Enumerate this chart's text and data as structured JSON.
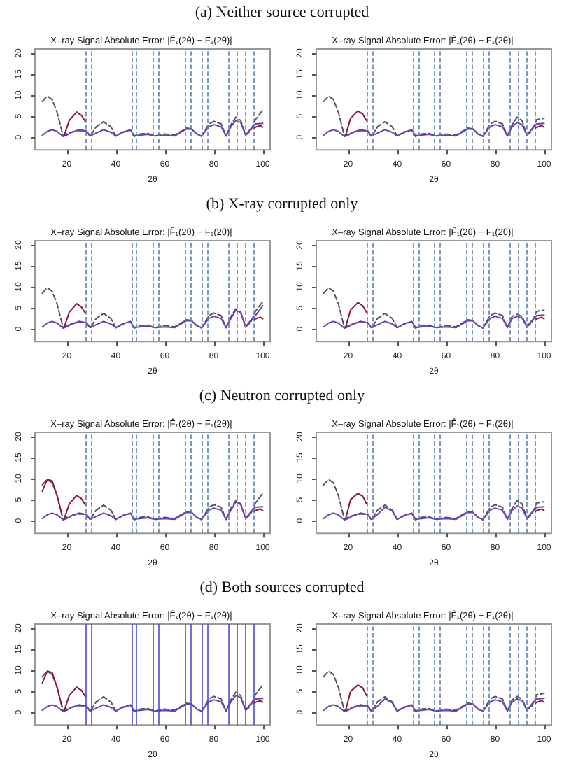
{
  "chart_data": [
    {
      "type": "line",
      "subtitle": "(a) Neither source corrupted",
      "title": "X–ray Signal Absolute Error: |F̂₁(2θ) − F₁(2θ)|",
      "xlabel": "2θ",
      "xlim": [
        7,
        103
      ],
      "xticks": [
        20,
        40,
        60,
        80,
        100
      ],
      "ylim": [
        -3,
        21
      ],
      "yticks": [
        0,
        5,
        10,
        15,
        20
      ],
      "x": [
        10,
        12,
        14,
        16,
        18.5,
        20,
        22,
        25,
        28,
        29.5,
        32,
        35,
        38,
        40,
        43,
        46,
        47.5,
        50,
        53,
        56,
        60,
        64,
        66,
        69,
        71,
        73,
        75,
        78,
        80,
        83,
        85,
        87,
        89,
        91,
        93,
        95,
        97,
        100
      ],
      "series": [
        {
          "color": "#555555",
          "line_style": "dashed",
          "values": [
            8.5,
            9.8,
            9,
            6,
            0.3,
            0.8,
            1.2,
            1.6,
            1.5,
            0.2,
            2.5,
            3.7,
            2.5,
            0.3,
            1.2,
            1.8,
            0.2,
            0.8,
            0.9,
            0.3,
            0.8,
            0.5,
            1.2,
            2.2,
            2,
            0.8,
            0.2,
            3.2,
            3.8,
            3.2,
            0.3,
            3,
            4.8,
            4,
            0.5,
            1.5,
            4.2,
            6.5
          ]
        },
        {
          "color": "#6a3fb5",
          "values": [
            0.5,
            1.4,
            1.8,
            1.4,
            0.2,
            0.5,
            1.2,
            1.8,
            1.5,
            0.3,
            1,
            1.8,
            1.2,
            0.3,
            1.3,
            1.7,
            0.4,
            0.5,
            0.7,
            0.3,
            0.5,
            0.3,
            1,
            2,
            1.9,
            0.8,
            0.3,
            2.5,
            3,
            2.5,
            0.3,
            2.5,
            4,
            3.5,
            0.5,
            2,
            3.2,
            3.3
          ]
        },
        {
          "color": "#8b1a3a",
          "x": [
            19,
            21,
            24,
            26,
            27.5
          ],
          "values": [
            0.5,
            4,
            6,
            5.2,
            3.8
          ]
        },
        {
          "color": "#8b1a3a",
          "x": [
            96.5,
            97,
            99,
            100
          ],
          "values": [
            2.2,
            2.4,
            2.8,
            2.4
          ]
        }
      ],
      "ref_lines": [
        {
          "axis": "x",
          "value": 27.5,
          "line_style": "dashed"
        },
        {
          "axis": "x",
          "value": 30,
          "line_style": "dashed"
        },
        {
          "axis": "x",
          "value": 46.5,
          "line_style": "dashed"
        },
        {
          "axis": "x",
          "value": 48.5,
          "line_style": "dashed"
        },
        {
          "axis": "x",
          "value": 55,
          "line_style": "dashed"
        },
        {
          "axis": "x",
          "value": 57.5,
          "line_style": "dashed"
        },
        {
          "axis": "x",
          "value": 68,
          "line_style": "dashed"
        },
        {
          "axis": "x",
          "value": 70.5,
          "line_style": "dashed"
        },
        {
          "axis": "x",
          "value": 75,
          "line_style": "dashed"
        },
        {
          "axis": "x",
          "value": 77.5,
          "line_style": "dashed"
        },
        {
          "axis": "x",
          "value": 86,
          "line_style": "dashed"
        },
        {
          "axis": "x",
          "value": 89.5,
          "line_style": "dashed"
        },
        {
          "axis": "x",
          "value": 93,
          "line_style": "dashed"
        },
        {
          "axis": "x",
          "value": 96,
          "line_style": "dashed"
        }
      ]
    },
    {
      "type": "line",
      "title": "X–ray Signal Absolute Error: |F̂₁(2θ) − F₁(2θ)|",
      "xlabel": "2θ",
      "xlim": [
        7,
        103
      ],
      "xticks": [
        20,
        40,
        60,
        80,
        100
      ],
      "ylim": [
        -3,
        21
      ],
      "yticks": [
        0,
        5,
        10,
        15,
        20
      ],
      "x": [
        10,
        12,
        14,
        16,
        18.5,
        20,
        22,
        25,
        28,
        29.5,
        32,
        35,
        38,
        40,
        43,
        46,
        47.5,
        50,
        53,
        56,
        60,
        64,
        66,
        69,
        71,
        73,
        75,
        78,
        80,
        83,
        85,
        87,
        89,
        91,
        93,
        95,
        97,
        100
      ],
      "series": [
        {
          "color": "#555555",
          "line_style": "dashed",
          "values": [
            8.5,
            9.8,
            9,
            6,
            0.3,
            0.8,
            1.2,
            1.6,
            1.5,
            0.2,
            2.5,
            3.7,
            2.5,
            0.3,
            1.2,
            1.8,
            0.2,
            0.8,
            0.9,
            0.3,
            0.8,
            0.5,
            1.2,
            2.2,
            2,
            0.8,
            0.2,
            3.2,
            3.8,
            3.2,
            0.3,
            3,
            4.8,
            4,
            0.5,
            1.5,
            4.2,
            4.5
          ]
        },
        {
          "color": "#6a3fb5",
          "values": [
            0.5,
            1.4,
            1.8,
            1.4,
            0.2,
            0.5,
            1.2,
            1.8,
            1.5,
            0.3,
            1,
            1.8,
            1.2,
            0.3,
            1.3,
            1.7,
            0.4,
            0.5,
            0.7,
            0.3,
            0.5,
            0.3,
            1,
            2,
            1.9,
            0.8,
            0.3,
            2.5,
            3,
            2.5,
            0.3,
            2.5,
            3.5,
            3,
            0.5,
            2,
            3.2,
            3.3
          ]
        },
        {
          "color": "#8b1a3a",
          "x": [
            19,
            21,
            24,
            26,
            27.5
          ],
          "values": [
            0.5,
            4.5,
            6.3,
            5.5,
            4
          ]
        },
        {
          "color": "#8b1a3a",
          "x": [
            96.5,
            97,
            99,
            100
          ],
          "values": [
            2.2,
            2.4,
            2.8,
            2.4
          ]
        }
      ],
      "ref_lines": [
        {
          "axis": "x",
          "value": 27.5,
          "line_style": "dashed"
        },
        {
          "axis": "x",
          "value": 30,
          "line_style": "dashed"
        },
        {
          "axis": "x",
          "value": 46.5,
          "line_style": "dashed"
        },
        {
          "axis": "x",
          "value": 49,
          "line_style": "dashed"
        },
        {
          "axis": "x",
          "value": 55,
          "line_style": "dashed"
        },
        {
          "axis": "x",
          "value": 57.5,
          "line_style": "dashed"
        },
        {
          "axis": "x",
          "value": 68,
          "line_style": "dashed"
        },
        {
          "axis": "x",
          "value": 70.5,
          "line_style": "dashed"
        },
        {
          "axis": "x",
          "value": 75,
          "line_style": "dashed"
        },
        {
          "axis": "x",
          "value": 77.5,
          "line_style": "dashed"
        },
        {
          "axis": "x",
          "value": 86,
          "line_style": "dashed"
        },
        {
          "axis": "x",
          "value": 89.5,
          "line_style": "dashed"
        },
        {
          "axis": "x",
          "value": 93,
          "line_style": "dashed"
        },
        {
          "axis": "x",
          "value": 96,
          "line_style": "dashed"
        }
      ]
    },
    {
      "type": "line",
      "subtitle": "(b) X-ray corrupted only",
      "title": "X–ray Signal Absolute Error: |F̂₁(2θ) − F₁(2θ)|",
      "xlabel": "2θ",
      "xlim": [
        7,
        103
      ],
      "xticks": [
        20,
        40,
        60,
        80,
        100
      ],
      "ylim": [
        -3,
        21
      ],
      "yticks": [
        0,
        5,
        10,
        15,
        20
      ],
      "x": [
        10,
        12,
        14,
        16,
        18.5,
        20,
        22,
        25,
        28,
        29.5,
        32,
        35,
        38,
        40,
        43,
        46,
        47.5,
        50,
        53,
        56,
        60,
        64,
        66,
        69,
        71,
        73,
        75,
        78,
        80,
        83,
        85,
        87,
        89,
        91,
        93,
        95,
        97,
        100
      ],
      "series": [
        {
          "color": "#555555",
          "line_style": "dashed",
          "values": [
            8.5,
            9.8,
            9,
            6,
            0.3,
            0.8,
            1.2,
            1.6,
            1.5,
            0.2,
            2.5,
            3.7,
            2.5,
            0.3,
            1.2,
            1.8,
            0.2,
            0.8,
            0.9,
            0.3,
            0.8,
            0.5,
            1.2,
            2.2,
            2,
            0.8,
            0.2,
            3.2,
            3.8,
            3.2,
            0.3,
            3,
            4.8,
            4,
            0.5,
            1.5,
            4.2,
            6.5
          ]
        },
        {
          "color": "#6a3fb5",
          "values": [
            0.5,
            1.4,
            1.8,
            1.4,
            0.2,
            0.5,
            1.2,
            1.8,
            1.5,
            0.3,
            1,
            1.8,
            1.2,
            0.3,
            1.3,
            1.7,
            0.4,
            0.5,
            0.7,
            0.3,
            0.5,
            0.3,
            1,
            2,
            1.9,
            0.8,
            0.3,
            2.5,
            3,
            2.5,
            0.3,
            2.5,
            4.5,
            3.8,
            0.5,
            2,
            3.2,
            5.5
          ]
        },
        {
          "color": "#8b1a3a",
          "x": [
            19,
            21,
            24,
            26,
            27.5
          ],
          "values": [
            0.5,
            4,
            6,
            5.2,
            3.8
          ]
        },
        {
          "color": "#8b1a3a",
          "x": [
            96.5,
            97,
            99,
            100
          ],
          "values": [
            2.2,
            2.4,
            2.8,
            2.4
          ]
        }
      ],
      "ref_lines": [
        {
          "axis": "x",
          "value": 27.5,
          "line_style": "dashed"
        },
        {
          "axis": "x",
          "value": 30,
          "line_style": "dashed"
        },
        {
          "axis": "x",
          "value": 46.5,
          "line_style": "dashed"
        },
        {
          "axis": "x",
          "value": 48.5,
          "line_style": "dashed"
        },
        {
          "axis": "x",
          "value": 55,
          "line_style": "dashed"
        },
        {
          "axis": "x",
          "value": 57.5,
          "line_style": "dashed"
        },
        {
          "axis": "x",
          "value": 68,
          "line_style": "dashed"
        },
        {
          "axis": "x",
          "value": 70.5,
          "line_style": "dashed"
        },
        {
          "axis": "x",
          "value": 75,
          "line_style": "dashed"
        },
        {
          "axis": "x",
          "value": 77.5,
          "line_style": "dashed"
        },
        {
          "axis": "x",
          "value": 86,
          "line_style": "dashed"
        },
        {
          "axis": "x",
          "value": 89.5,
          "line_style": "dashed"
        },
        {
          "axis": "x",
          "value": 93,
          "line_style": "dashed"
        },
        {
          "axis": "x",
          "value": 96,
          "line_style": "dashed"
        }
      ]
    },
    {
      "type": "line",
      "title": "X–ray Signal Absolute Error: |F̂₁(2θ) − F₁(2θ)|",
      "xlabel": "2θ",
      "xlim": [
        7,
        103
      ],
      "xticks": [
        20,
        40,
        60,
        80,
        100
      ],
      "ylim": [
        -3,
        21
      ],
      "yticks": [
        0,
        5,
        10,
        15,
        20
      ],
      "x": [
        10,
        12,
        14,
        16,
        18.5,
        20,
        22,
        25,
        28,
        29.5,
        32,
        35,
        38,
        40,
        43,
        46,
        47.5,
        50,
        53,
        56,
        60,
        64,
        66,
        69,
        71,
        73,
        75,
        78,
        80,
        83,
        85,
        87,
        89,
        91,
        93,
        95,
        97,
        100
      ],
      "series": [
        {
          "color": "#555555",
          "line_style": "dashed",
          "values": [
            8.5,
            9.8,
            9,
            6,
            0.3,
            0.8,
            1.2,
            1.6,
            1.5,
            0.2,
            2.5,
            3.7,
            2.5,
            0.3,
            1.2,
            1.8,
            0.2,
            0.8,
            0.9,
            0.3,
            0.8,
            0.5,
            1.2,
            2.2,
            2,
            0.8,
            0.2,
            3.2,
            3.8,
            3.2,
            0.3,
            3,
            3.5,
            3,
            0.5,
            1.5,
            4.2,
            4.5
          ]
        },
        {
          "color": "#6a3fb5",
          "values": [
            0.5,
            1.4,
            1.8,
            1.4,
            0.2,
            0.5,
            1.2,
            1.8,
            1.5,
            0.3,
            1,
            1.8,
            1.2,
            0.3,
            1.3,
            1.7,
            0.4,
            0.5,
            0.7,
            0.3,
            0.5,
            0.3,
            1,
            2,
            1.9,
            0.8,
            0.3,
            2.5,
            3,
            2.5,
            0.3,
            2.5,
            3,
            2.6,
            0.5,
            2,
            3.2,
            3.3
          ]
        },
        {
          "color": "#8b1a3a",
          "x": [
            19,
            21,
            24,
            26,
            27.5
          ],
          "values": [
            0.5,
            4.5,
            6.3,
            5.5,
            4
          ]
        },
        {
          "color": "#8b1a3a",
          "x": [
            96.5,
            97,
            99,
            100
          ],
          "values": [
            2.2,
            2.4,
            2.8,
            2.4
          ]
        }
      ],
      "ref_lines": [
        {
          "axis": "x",
          "value": 27.5,
          "line_style": "dashed"
        },
        {
          "axis": "x",
          "value": 30,
          "line_style": "dashed"
        },
        {
          "axis": "x",
          "value": 46.5,
          "line_style": "dashed"
        },
        {
          "axis": "x",
          "value": 49,
          "line_style": "dashed"
        },
        {
          "axis": "x",
          "value": 55,
          "line_style": "dashed"
        },
        {
          "axis": "x",
          "value": 57.5,
          "line_style": "dashed"
        },
        {
          "axis": "x",
          "value": 68,
          "line_style": "dashed"
        },
        {
          "axis": "x",
          "value": 70.5,
          "line_style": "dashed"
        },
        {
          "axis": "x",
          "value": 75,
          "line_style": "dashed"
        },
        {
          "axis": "x",
          "value": 77.5,
          "line_style": "dashed"
        },
        {
          "axis": "x",
          "value": 86,
          "line_style": "dashed"
        },
        {
          "axis": "x",
          "value": 89.5,
          "line_style": "dashed"
        },
        {
          "axis": "x",
          "value": 93,
          "line_style": "dashed"
        },
        {
          "axis": "x",
          "value": 96,
          "line_style": "dashed"
        }
      ]
    },
    {
      "type": "line",
      "subtitle": "(c) Neutron corrupted only",
      "title": "X–ray Signal Absolute Error: |F̂₁(2θ) − F₁(2θ)|",
      "xlabel": "2θ",
      "xlim": [
        7,
        103
      ],
      "xticks": [
        20,
        40,
        60,
        80,
        100
      ],
      "ylim": [
        -3,
        21
      ],
      "yticks": [
        0,
        5,
        10,
        15,
        20
      ],
      "x": [
        10,
        12,
        14,
        16,
        18.5,
        20,
        22,
        25,
        28,
        29.5,
        32,
        35,
        38,
        40,
        43,
        46,
        47.5,
        50,
        53,
        56,
        60,
        64,
        66,
        69,
        71,
        73,
        75,
        78,
        80,
        83,
        85,
        87,
        89,
        91,
        93,
        95,
        97,
        100
      ],
      "series": [
        {
          "color": "#555555",
          "line_style": "dashed",
          "values": [
            8.5,
            9.8,
            9,
            6,
            0.3,
            0.8,
            1.2,
            1.6,
            1.5,
            0.2,
            2.5,
            3.7,
            2.5,
            0.3,
            1.2,
            1.8,
            0.2,
            0.8,
            0.9,
            0.3,
            0.8,
            0.5,
            1.2,
            2.2,
            2,
            0.8,
            0.2,
            3.2,
            3.8,
            3.2,
            0.3,
            3,
            4.8,
            4,
            0.5,
            1.5,
            4.2,
            6.5
          ]
        },
        {
          "color": "#6a3fb5",
          "values": [
            0.5,
            1.4,
            1.8,
            1.4,
            0.2,
            0.5,
            1.2,
            1.8,
            1.5,
            0.3,
            1,
            1.8,
            1.2,
            0.3,
            1.3,
            1.7,
            0.4,
            0.5,
            0.7,
            0.3,
            0.5,
            0.3,
            1,
            2,
            1.9,
            0.8,
            0.3,
            2.5,
            3,
            2.5,
            0.3,
            2.5,
            4.5,
            3.8,
            0.5,
            2,
            3.2,
            3.3
          ]
        },
        {
          "color": "#8b1a3a",
          "x": [
            10,
            12,
            14,
            16,
            18
          ],
          "values": [
            7,
            9.8,
            9.5,
            6,
            1.5
          ]
        },
        {
          "color": "#8b1a3a",
          "x": [
            19,
            21,
            24,
            26,
            27.5
          ],
          "values": [
            0.5,
            4,
            6,
            5.2,
            3.8
          ]
        },
        {
          "color": "#8b1a3a",
          "x": [
            96.5,
            97,
            99,
            100
          ],
          "values": [
            2.2,
            2.4,
            2.8,
            2.4
          ]
        }
      ],
      "ref_lines": [
        {
          "axis": "x",
          "value": 27.5,
          "line_style": "dashed"
        },
        {
          "axis": "x",
          "value": 30,
          "line_style": "dashed"
        },
        {
          "axis": "x",
          "value": 46.5,
          "line_style": "dashed"
        },
        {
          "axis": "x",
          "value": 48.5,
          "line_style": "dashed"
        },
        {
          "axis": "x",
          "value": 55,
          "line_style": "dashed"
        },
        {
          "axis": "x",
          "value": 57.5,
          "line_style": "dashed"
        },
        {
          "axis": "x",
          "value": 68,
          "line_style": "dashed"
        },
        {
          "axis": "x",
          "value": 70.5,
          "line_style": "dashed"
        },
        {
          "axis": "x",
          "value": 75,
          "line_style": "dashed"
        },
        {
          "axis": "x",
          "value": 77.5,
          "line_style": "dashed"
        },
        {
          "axis": "x",
          "value": 86,
          "line_style": "dashed"
        },
        {
          "axis": "x",
          "value": 89.5,
          "line_style": "dashed"
        },
        {
          "axis": "x",
          "value": 93,
          "line_style": "dashed"
        },
        {
          "axis": "x",
          "value": 96,
          "line_style": "dashed"
        }
      ]
    },
    {
      "type": "line",
      "title": "X–ray Signal Absolute Error: |F̂₁(2θ) − F₁(2θ)|",
      "xlabel": "2θ",
      "xlim": [
        7,
        103
      ],
      "xticks": [
        20,
        40,
        60,
        80,
        100
      ],
      "ylim": [
        -3,
        21
      ],
      "yticks": [
        0,
        5,
        10,
        15,
        20
      ],
      "x": [
        10,
        12,
        14,
        16,
        18.5,
        20,
        22,
        25,
        28,
        29.5,
        32,
        35,
        38,
        40,
        43,
        46,
        47.5,
        50,
        53,
        56,
        60,
        64,
        66,
        69,
        71,
        73,
        75,
        78,
        80,
        83,
        85,
        87,
        89,
        91,
        93,
        95,
        97,
        100
      ],
      "series": [
        {
          "color": "#555555",
          "line_style": "dashed",
          "values": [
            8.5,
            9.8,
            9,
            6,
            0.3,
            0.8,
            1.2,
            1.6,
            1.5,
            0.2,
            2.5,
            3.7,
            2.5,
            0.3,
            1.2,
            1.8,
            0.2,
            0.8,
            0.9,
            0.3,
            0.8,
            0.5,
            1.2,
            2.2,
            2,
            0.8,
            0.2,
            3.2,
            3.8,
            3.2,
            0.3,
            3,
            4.8,
            4,
            0.5,
            1.5,
            4.2,
            4.5
          ]
        },
        {
          "color": "#6a3fb5",
          "values": [
            0.5,
            1.4,
            1.8,
            1.4,
            0.2,
            0.5,
            1.2,
            1.8,
            1.5,
            0.3,
            1.5,
            3.2,
            2.3,
            0.3,
            1.3,
            1.7,
            0.4,
            0.5,
            0.7,
            0.3,
            0.5,
            0.3,
            1,
            2,
            1.9,
            0.8,
            0.3,
            2.5,
            3,
            2.5,
            0.3,
            2.5,
            3.5,
            3,
            0.5,
            2,
            3.2,
            3.3
          ]
        },
        {
          "color": "#8b1a3a",
          "x": [
            19,
            21,
            24,
            26,
            27.5
          ],
          "values": [
            0.5,
            5,
            6.5,
            5.8,
            4
          ]
        },
        {
          "color": "#8b1a3a",
          "x": [
            96.5,
            97,
            99,
            100
          ],
          "values": [
            2.2,
            2.4,
            2.8,
            2.4
          ]
        }
      ],
      "ref_lines": [
        {
          "axis": "x",
          "value": 27.5,
          "line_style": "dashed"
        },
        {
          "axis": "x",
          "value": 30,
          "line_style": "dashed"
        },
        {
          "axis": "x",
          "value": 46.5,
          "line_style": "dashed"
        },
        {
          "axis": "x",
          "value": 49,
          "line_style": "dashed"
        },
        {
          "axis": "x",
          "value": 55,
          "line_style": "dashed"
        },
        {
          "axis": "x",
          "value": 57.5,
          "line_style": "dashed"
        },
        {
          "axis": "x",
          "value": 68,
          "line_style": "dashed"
        },
        {
          "axis": "x",
          "value": 70.5,
          "line_style": "dashed"
        },
        {
          "axis": "x",
          "value": 75,
          "line_style": "dashed"
        },
        {
          "axis": "x",
          "value": 77.5,
          "line_style": "dashed"
        },
        {
          "axis": "x",
          "value": 86,
          "line_style": "dashed"
        },
        {
          "axis": "x",
          "value": 89.5,
          "line_style": "dashed"
        },
        {
          "axis": "x",
          "value": 93,
          "line_style": "dashed"
        },
        {
          "axis": "x",
          "value": 96,
          "line_style": "dashed"
        }
      ]
    },
    {
      "type": "line",
      "subtitle": "(d) Both sources corrupted",
      "title": "X–ray Signal Absolute Error: |F̂₁(2θ) − F₁(2θ)|",
      "xlabel": "2θ",
      "xlim": [
        7,
        103
      ],
      "xticks": [
        20,
        40,
        60,
        80,
        100
      ],
      "ylim": [
        -3,
        21
      ],
      "yticks": [
        0,
        5,
        10,
        15,
        20
      ],
      "x": [
        10,
        12,
        14,
        16,
        18.5,
        20,
        22,
        25,
        28,
        29.5,
        32,
        35,
        38,
        40,
        43,
        46,
        47.5,
        50,
        53,
        56,
        60,
        64,
        66,
        69,
        71,
        73,
        75,
        78,
        80,
        83,
        85,
        87,
        89,
        91,
        93,
        95,
        97,
        100
      ],
      "series": [
        {
          "color": "#555555",
          "line_style": "dashed",
          "values": [
            8.5,
            9.8,
            9,
            6,
            0.3,
            0.8,
            1.2,
            1.6,
            1.5,
            0.2,
            2.5,
            3.7,
            2.5,
            0.3,
            1.2,
            1.8,
            0.2,
            0.8,
            0.9,
            0.3,
            0.8,
            0.5,
            1.2,
            2.2,
            2,
            0.8,
            0.2,
            3.2,
            3.8,
            3.2,
            0.3,
            3,
            4.8,
            4,
            0.5,
            1.5,
            4.2,
            6.5
          ]
        },
        {
          "color": "#6a3fb5",
          "values": [
            0.5,
            1.4,
            1.8,
            1.4,
            0.2,
            0.5,
            1.2,
            1.8,
            1.5,
            0.3,
            1,
            1.8,
            1.2,
            0.3,
            1.3,
            1.7,
            0.4,
            0.5,
            0.7,
            0.3,
            0.5,
            0.3,
            1,
            2,
            1.9,
            0.8,
            0.3,
            2.5,
            3,
            2.5,
            0.3,
            2.5,
            4,
            3.5,
            0.5,
            2,
            3.2,
            3.3
          ]
        },
        {
          "color": "#8b1a3a",
          "x": [
            10,
            12,
            14,
            16,
            18
          ],
          "values": [
            7,
            9.8,
            9.5,
            6,
            1.5
          ]
        },
        {
          "color": "#8b1a3a",
          "x": [
            19,
            21,
            24,
            26,
            27.5
          ],
          "values": [
            0.5,
            4,
            6,
            5.2,
            3.8
          ]
        },
        {
          "color": "#8b1a3a",
          "x": [
            96.5,
            97,
            99,
            100
          ],
          "values": [
            2.2,
            2.4,
            2.8,
            2.4
          ]
        }
      ],
      "ref_lines": [
        {
          "axis": "x",
          "value": 27.5,
          "color": "#4b4bd0",
          "line_style": "solid"
        },
        {
          "axis": "x",
          "value": 30,
          "color": "#4b4bd0",
          "line_style": "solid"
        },
        {
          "axis": "x",
          "value": 46.5,
          "color": "#4b4bd0",
          "line_style": "solid"
        },
        {
          "axis": "x",
          "value": 48.5,
          "color": "#4b4bd0",
          "line_style": "solid"
        },
        {
          "axis": "x",
          "value": 55,
          "color": "#4b4bd0",
          "line_style": "solid"
        },
        {
          "axis": "x",
          "value": 57.5,
          "color": "#4b4bd0",
          "line_style": "solid"
        },
        {
          "axis": "x",
          "value": 68,
          "color": "#4b4bd0",
          "line_style": "solid"
        },
        {
          "axis": "x",
          "value": 70.5,
          "color": "#4b4bd0",
          "line_style": "solid"
        },
        {
          "axis": "x",
          "value": 75,
          "color": "#4b4bd0",
          "line_style": "solid"
        },
        {
          "axis": "x",
          "value": 77.5,
          "color": "#4b4bd0",
          "line_style": "solid"
        },
        {
          "axis": "x",
          "value": 86,
          "color": "#4b4bd0",
          "line_style": "solid"
        },
        {
          "axis": "x",
          "value": 89.5,
          "color": "#4b4bd0",
          "line_style": "solid"
        },
        {
          "axis": "x",
          "value": 93,
          "color": "#4b4bd0",
          "line_style": "solid"
        },
        {
          "axis": "x",
          "value": 96,
          "color": "#4b4bd0",
          "line_style": "solid"
        }
      ]
    },
    {
      "type": "line",
      "title": "X–ray Signal Absolute Error: |F̂₁(2θ) − F₁(2θ)|",
      "xlabel": "2θ",
      "xlim": [
        7,
        103
      ],
      "xticks": [
        20,
        40,
        60,
        80,
        100
      ],
      "ylim": [
        -3,
        21
      ],
      "yticks": [
        0,
        5,
        10,
        15,
        20
      ],
      "x": [
        10,
        12,
        14,
        16,
        18.5,
        20,
        22,
        25,
        28,
        29.5,
        32,
        35,
        38,
        40,
        43,
        46,
        47.5,
        50,
        53,
        56,
        60,
        64,
        66,
        69,
        71,
        73,
        75,
        78,
        80,
        83,
        85,
        87,
        89,
        91,
        93,
        95,
        97,
        100
      ],
      "series": [
        {
          "color": "#555555",
          "line_style": "dashed",
          "values": [
            8.5,
            9.8,
            9,
            6,
            0.3,
            0.8,
            1.2,
            1.6,
            1.5,
            0.2,
            2.5,
            3.7,
            2.5,
            0.3,
            1.2,
            1.8,
            0.2,
            0.8,
            0.9,
            0.3,
            0.8,
            0.5,
            1.2,
            2.2,
            2,
            0.8,
            0.2,
            3.2,
            3.8,
            3.2,
            0.3,
            3,
            3.8,
            3.2,
            0.5,
            1.5,
            4.2,
            4.5
          ]
        },
        {
          "color": "#6a3fb5",
          "values": [
            0.5,
            1.4,
            1.8,
            1.4,
            0.2,
            0.5,
            1.2,
            1.8,
            1.5,
            0.3,
            1.5,
            3.2,
            2.3,
            0.3,
            1.3,
            1.7,
            0.4,
            0.5,
            0.7,
            0.3,
            0.5,
            0.3,
            1,
            2,
            1.9,
            0.8,
            0.3,
            2.5,
            3,
            2.5,
            0.3,
            2.5,
            3.2,
            2.8,
            0.5,
            2,
            3.2,
            3.3
          ]
        },
        {
          "color": "#8b1a3a",
          "x": [
            19,
            21,
            24,
            26,
            27.5
          ],
          "values": [
            0.5,
            5,
            6.5,
            5.8,
            4
          ]
        },
        {
          "color": "#8b1a3a",
          "x": [
            96.5,
            97,
            99,
            100
          ],
          "values": [
            2.2,
            2.4,
            2.8,
            2.4
          ]
        }
      ],
      "ref_lines": [
        {
          "axis": "x",
          "value": 27.5,
          "line_style": "dashed"
        },
        {
          "axis": "x",
          "value": 30,
          "line_style": "dashed"
        },
        {
          "axis": "x",
          "value": 46.5,
          "line_style": "dashed"
        },
        {
          "axis": "x",
          "value": 49,
          "line_style": "dashed"
        },
        {
          "axis": "x",
          "value": 55,
          "line_style": "dashed"
        },
        {
          "axis": "x",
          "value": 57.5,
          "line_style": "dashed"
        },
        {
          "axis": "x",
          "value": 68,
          "line_style": "dashed"
        },
        {
          "axis": "x",
          "value": 70.5,
          "line_style": "dashed"
        },
        {
          "axis": "x",
          "value": 75,
          "line_style": "dashed"
        },
        {
          "axis": "x",
          "value": 77.5,
          "line_style": "dashed"
        },
        {
          "axis": "x",
          "value": 86,
          "line_style": "dashed"
        },
        {
          "axis": "x",
          "value": 89.5,
          "line_style": "dashed"
        },
        {
          "axis": "x",
          "value": 93,
          "line_style": "dashed"
        },
        {
          "axis": "x",
          "value": 96,
          "line_style": "dashed"
        }
      ]
    }
  ]
}
